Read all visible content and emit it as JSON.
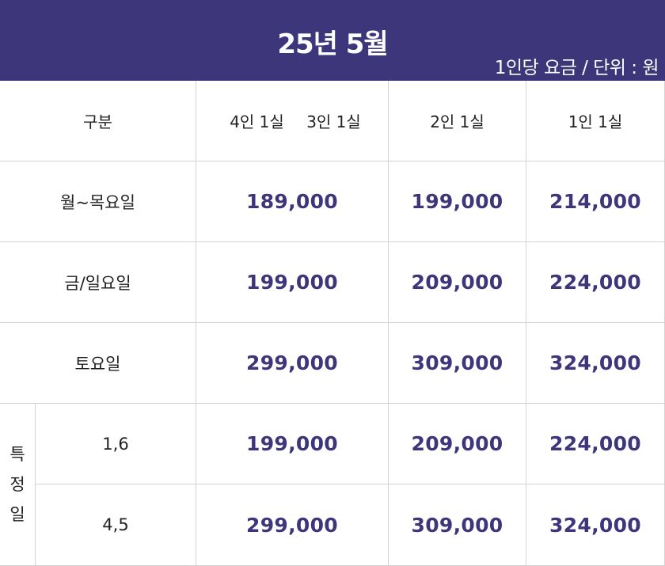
{
  "header": {
    "title": "25년 5월",
    "unit_note": "1인당 요금 / 단위 : 원"
  },
  "columns": {
    "category": "구분",
    "col_4in": "4인 1실",
    "col_3in": "3인 1실",
    "col_2in": "2인 1실",
    "col_1in": "1인 1실"
  },
  "rows": [
    {
      "label": "월~목요일",
      "p34": "189,000",
      "p2": "199,000",
      "p1": "214,000"
    },
    {
      "label": "금/일요일",
      "p34": "199,000",
      "p2": "209,000",
      "p1": "224,000"
    },
    {
      "label": "토요일",
      "p34": "299,000",
      "p2": "309,000",
      "p1": "324,000"
    }
  ],
  "special": {
    "group_chars": [
      "특",
      "정",
      "일"
    ],
    "rows": [
      {
        "label": "1,6",
        "p34": "199,000",
        "p2": "209,000",
        "p1": "224,000"
      },
      {
        "label": "4,5",
        "p34": "299,000",
        "p2": "309,000",
        "p1": "324,000"
      }
    ]
  }
}
